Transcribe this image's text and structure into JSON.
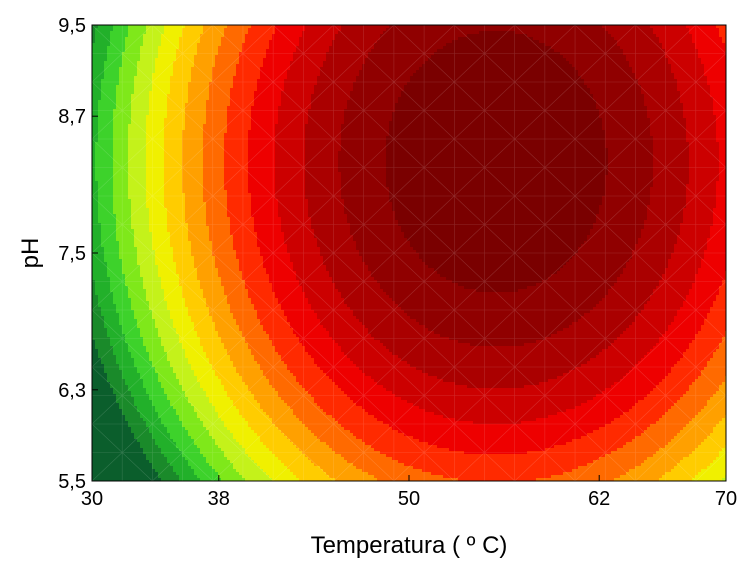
{
  "chart_data": {
    "type": "heatmap",
    "subtype": "contour",
    "title": "",
    "xlabel": "Temperatura ( º C)",
    "ylabel": "pH",
    "xlim": [
      30,
      70
    ],
    "ylim": [
      5.5,
      9.5
    ],
    "x_ticks": [
      30,
      38,
      50,
      62,
      70
    ],
    "x_tick_labels": [
      "30",
      "38",
      "50",
      "62",
      "70"
    ],
    "y_ticks": [
      5.5,
      6.3,
      7.5,
      8.7,
      9.5
    ],
    "y_tick_labels": [
      "5,5",
      "6,3",
      "7,5",
      "8,7",
      "9,5"
    ],
    "grid": false,
    "legend": "none",
    "response_surface": {
      "max_at": {
        "x": 55.5,
        "y": 8.3
      },
      "x_scale": 28,
      "y_scale": 4.6,
      "levels": 15
    },
    "colormap": [
      "#0b5e2c",
      "#1a8a2a",
      "#22b02a",
      "#3dd22b",
      "#7fe81a",
      "#c4f21a",
      "#f0f000",
      "#ffcc00",
      "#ffa000",
      "#ff6a00",
      "#ff2a00",
      "#ee0000",
      "#cc0000",
      "#aa0000",
      "#900000",
      "#7a0000"
    ]
  }
}
